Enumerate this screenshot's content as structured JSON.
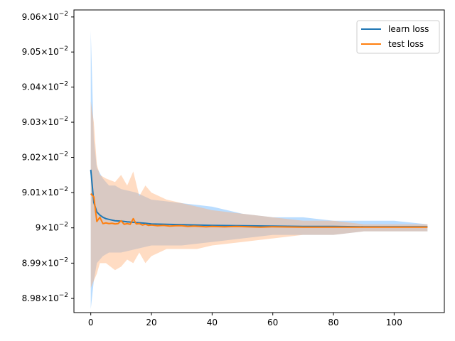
{
  "chart_data": {
    "type": "line",
    "title": "",
    "xlabel": "",
    "ylabel": "",
    "xlim": [
      -5.55,
      116.55
    ],
    "ylim": [
      0.08976,
      0.09062
    ],
    "yscale": "log",
    "x_ticks": [
      0,
      20,
      40,
      60,
      80,
      100
    ],
    "y_ticks": [
      {
        "value": 0.0898,
        "mantissa": "8.98"
      },
      {
        "value": 0.0899,
        "mantissa": "8.99"
      },
      {
        "value": 0.09,
        "mantissa": "9"
      },
      {
        "value": 0.0901,
        "mantissa": "9.01"
      },
      {
        "value": 0.0902,
        "mantissa": "9.02"
      },
      {
        "value": 0.0903,
        "mantissa": "9.03"
      },
      {
        "value": 0.0904,
        "mantissa": "9.04"
      },
      {
        "value": 0.0905,
        "mantissa": "9.05"
      },
      {
        "value": 0.0906,
        "mantissa": "9.06"
      }
    ],
    "tick_suffix": "×10",
    "tick_exponent": "−2",
    "legend": "top-right",
    "grid": false,
    "series": [
      {
        "name": "learn loss",
        "color": "#1f77b4",
        "band_color": "#66b3ff",
        "points": [
          [
            0,
            0.090165
          ],
          [
            1,
            0.090072
          ],
          [
            2,
            0.090045
          ],
          [
            3,
            0.090036
          ],
          [
            4,
            0.09003
          ],
          [
            5,
            0.090026
          ],
          [
            6,
            0.090024
          ],
          [
            7,
            0.090022
          ],
          [
            8,
            0.09002
          ],
          [
            10,
            0.090019
          ],
          [
            12,
            0.090017
          ],
          [
            15,
            0.090015
          ],
          [
            18,
            0.090013
          ],
          [
            20,
            0.090011
          ],
          [
            25,
            0.09001
          ],
          [
            30,
            0.090009
          ],
          [
            35,
            0.090008
          ],
          [
            40,
            0.090007
          ],
          [
            50,
            0.090006
          ],
          [
            60,
            0.090005
          ],
          [
            70,
            0.090004
          ],
          [
            80,
            0.090004
          ],
          [
            90,
            0.090003
          ],
          [
            100,
            0.090003
          ],
          [
            111,
            0.090003
          ]
        ],
        "band": [
          [
            0,
            0.08977,
            0.09056
          ],
          [
            1,
            0.08985,
            0.09025
          ],
          [
            2,
            0.0899,
            0.09017
          ],
          [
            4,
            0.08992,
            0.09014
          ],
          [
            6,
            0.08993,
            0.09012
          ],
          [
            8,
            0.08993,
            0.09012
          ],
          [
            10,
            0.08993,
            0.09011
          ],
          [
            15,
            0.08994,
            0.0901
          ],
          [
            20,
            0.08995,
            0.09008
          ],
          [
            30,
            0.08995,
            0.09007
          ],
          [
            40,
            0.08996,
            0.09006
          ],
          [
            50,
            0.08997,
            0.09004
          ],
          [
            60,
            0.08998,
            0.09003
          ],
          [
            70,
            0.08998,
            0.09003
          ],
          [
            80,
            0.08998,
            0.09002
          ],
          [
            90,
            0.08999,
            0.09002
          ],
          [
            100,
            0.08999,
            0.09002
          ],
          [
            111,
            0.08999,
            0.09001
          ]
        ]
      },
      {
        "name": "test loss",
        "color": "#ff7f0e",
        "band_color": "#ffb27a",
        "points": [
          [
            0,
            0.090097
          ],
          [
            1,
            0.090088
          ],
          [
            2,
            0.090018
          ],
          [
            3,
            0.09003
          ],
          [
            4,
            0.090012
          ],
          [
            5,
            0.090014
          ],
          [
            6,
            0.090012
          ],
          [
            7,
            0.090013
          ],
          [
            8,
            0.090011
          ],
          [
            9,
            0.090012
          ],
          [
            10,
            0.09002
          ],
          [
            11,
            0.09001
          ],
          [
            12,
            0.090012
          ],
          [
            13,
            0.09001
          ],
          [
            14,
            0.090026
          ],
          [
            15,
            0.090011
          ],
          [
            16,
            0.090012
          ],
          [
            17,
            0.090008
          ],
          [
            18,
            0.09001
          ],
          [
            19,
            0.090007
          ],
          [
            20,
            0.090008
          ],
          [
            22,
            0.090006
          ],
          [
            24,
            0.090007
          ],
          [
            26,
            0.090005
          ],
          [
            28,
            0.090006
          ],
          [
            30,
            0.090006
          ],
          [
            32,
            0.090004
          ],
          [
            34,
            0.090005
          ],
          [
            36,
            0.090004
          ],
          [
            38,
            0.090003
          ],
          [
            40,
            0.090004
          ],
          [
            44,
            0.090003
          ],
          [
            48,
            0.090004
          ],
          [
            52,
            0.090003
          ],
          [
            56,
            0.090002
          ],
          [
            60,
            0.090003
          ],
          [
            70,
            0.090002
          ],
          [
            80,
            0.090002
          ],
          [
            90,
            0.090002
          ],
          [
            100,
            0.090002
          ],
          [
            111,
            0.090002
          ]
        ],
        "band": [
          [
            0,
            0.08983,
            0.09036
          ],
          [
            1,
            0.08985,
            0.0903
          ],
          [
            2,
            0.08987,
            0.09018
          ],
          [
            3,
            0.0899,
            0.09015
          ],
          [
            5,
            0.0899,
            0.09014
          ],
          [
            8,
            0.08988,
            0.09013
          ],
          [
            10,
            0.08989,
            0.09015
          ],
          [
            12,
            0.08991,
            0.09012
          ],
          [
            14,
            0.0899,
            0.09016
          ],
          [
            16,
            0.08993,
            0.09009
          ],
          [
            18,
            0.0899,
            0.09012
          ],
          [
            20,
            0.08992,
            0.0901
          ],
          [
            25,
            0.08994,
            0.09008
          ],
          [
            30,
            0.08994,
            0.09007
          ],
          [
            35,
            0.08994,
            0.09006
          ],
          [
            40,
            0.08995,
            0.09005
          ],
          [
            50,
            0.08996,
            0.09004
          ],
          [
            60,
            0.08997,
            0.09003
          ],
          [
            70,
            0.08998,
            0.09002
          ],
          [
            80,
            0.08998,
            0.09002
          ],
          [
            90,
            0.08999,
            0.09001
          ],
          [
            100,
            0.08999,
            0.09001
          ],
          [
            111,
            0.08999,
            0.09001
          ]
        ]
      }
    ]
  }
}
